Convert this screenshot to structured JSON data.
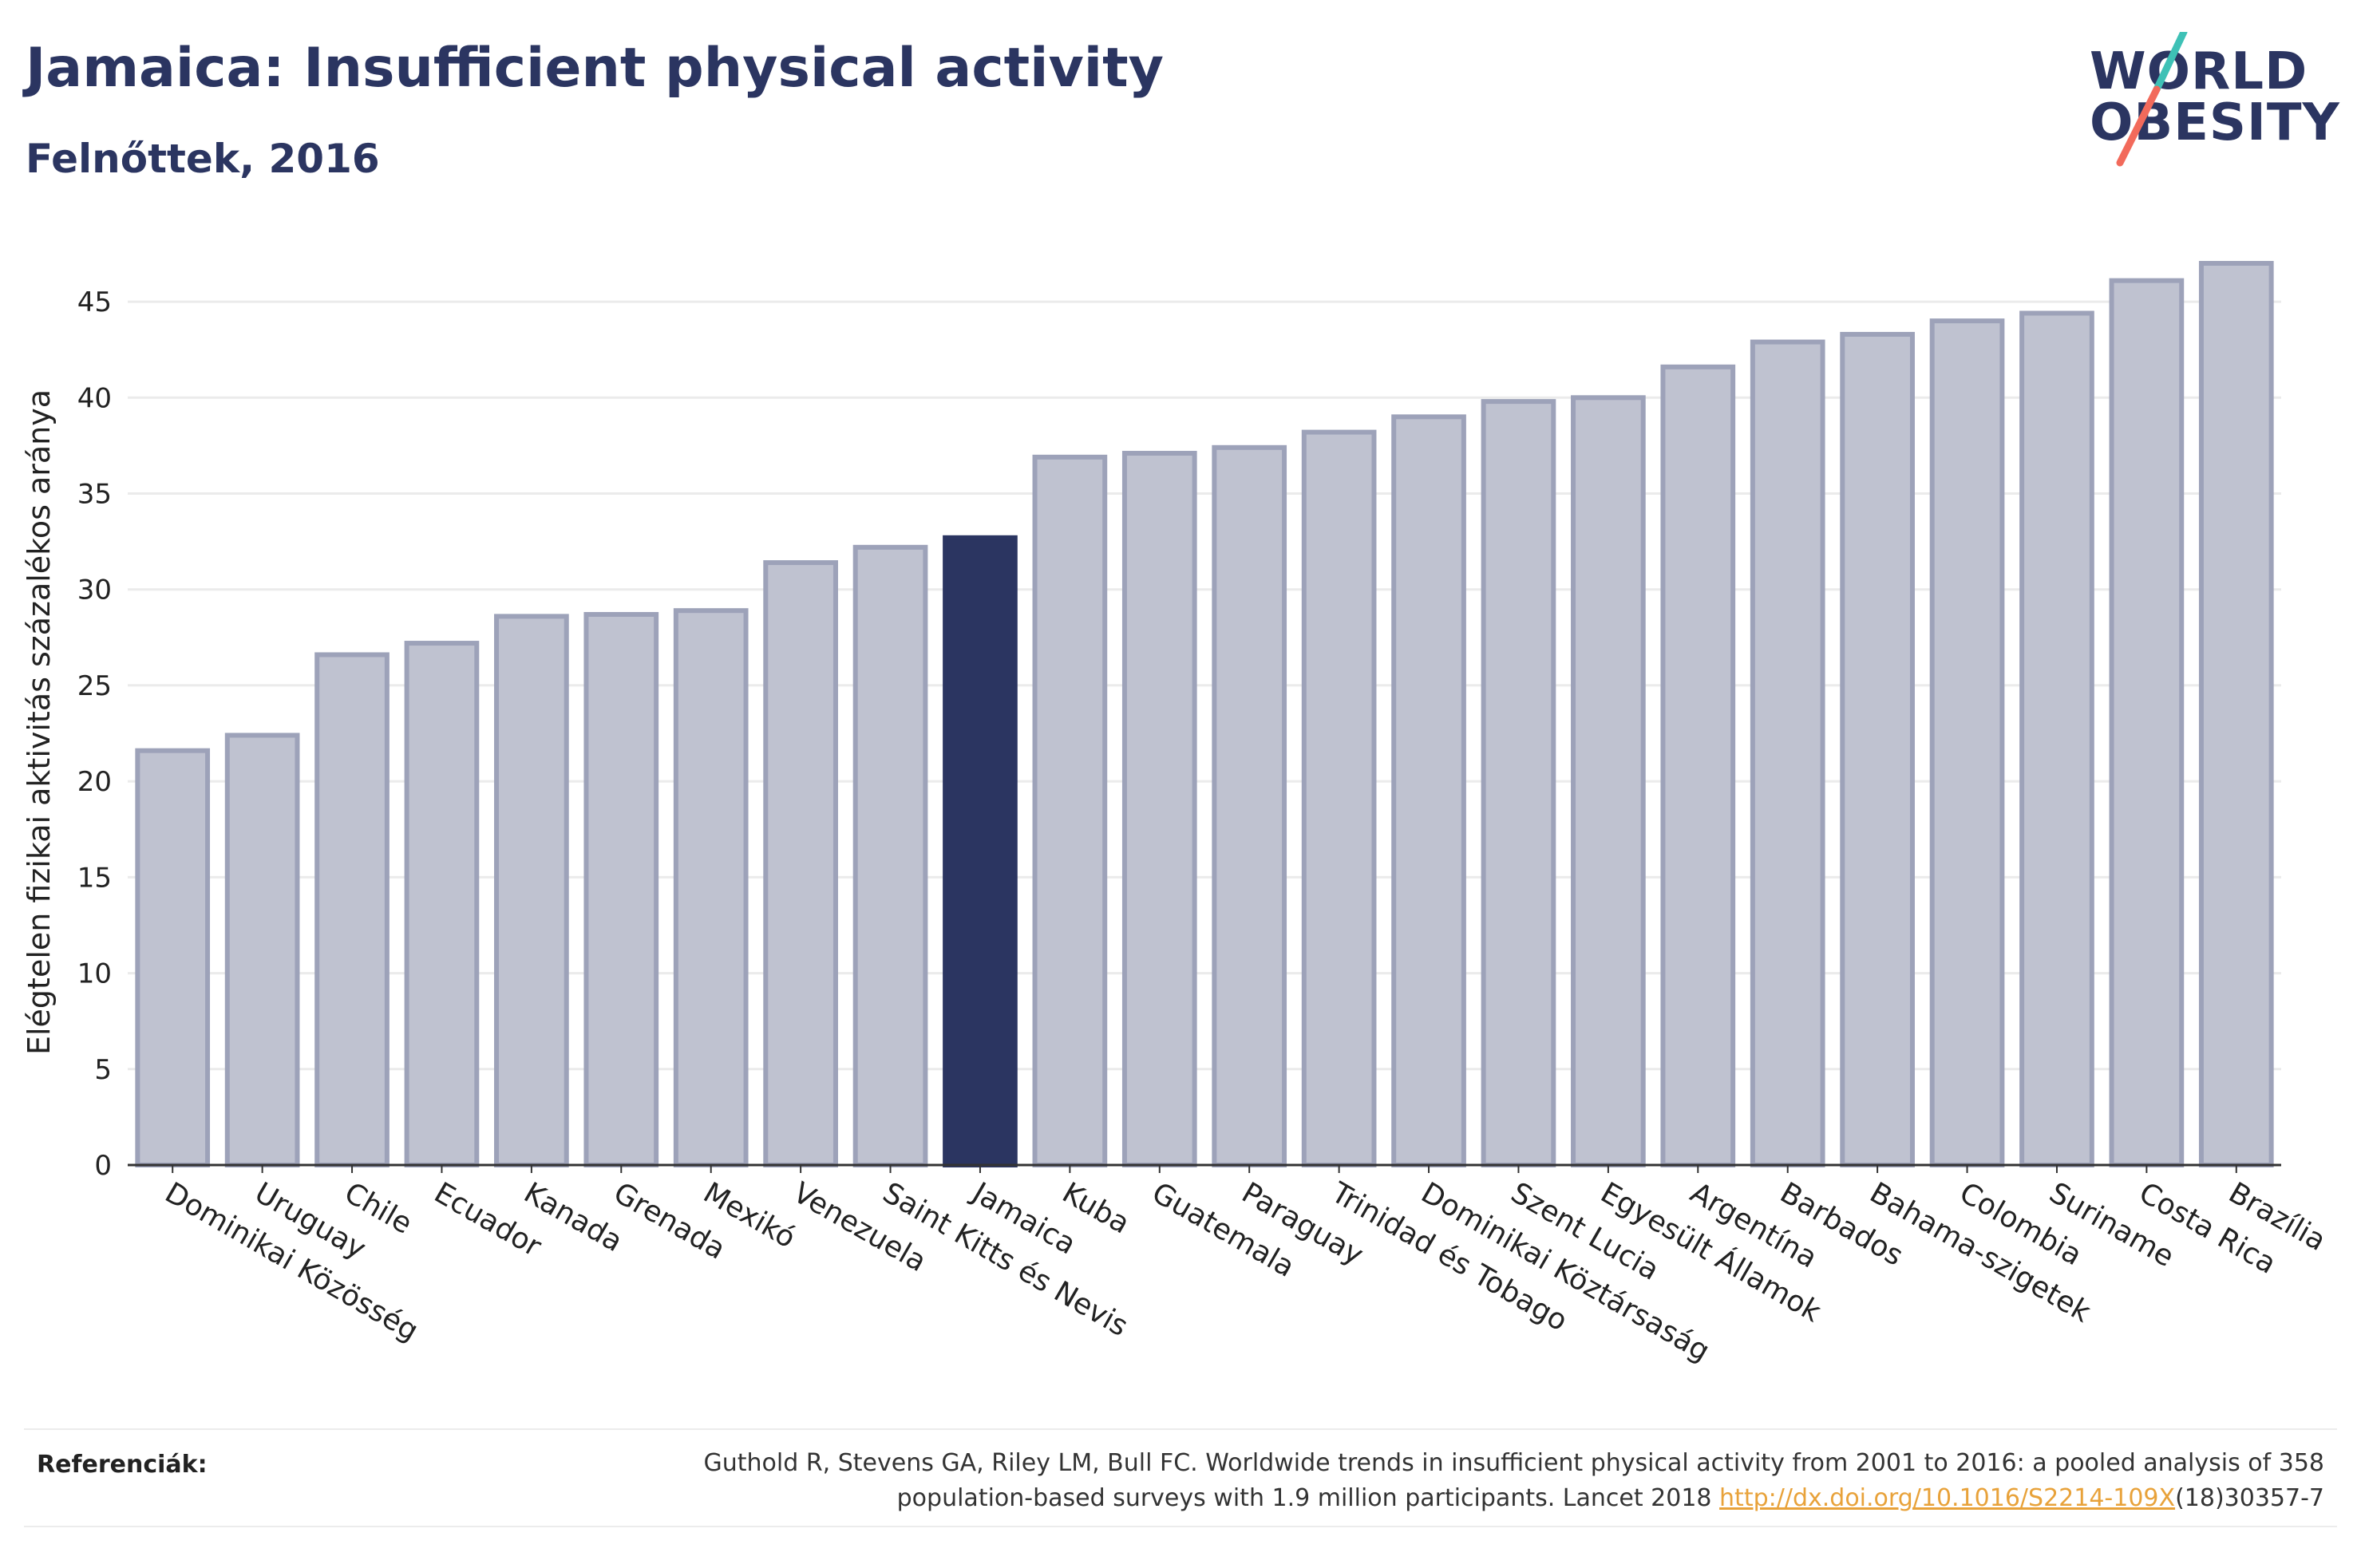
{
  "header": {
    "title": "Jamaica: Insufficient physical activity",
    "subtitle": "Felnőttek, 2016"
  },
  "logo": {
    "line1": "WORLD",
    "line2": "OBESITY",
    "colors": {
      "text": "#2b3561",
      "slash_top": "#3ec1b6",
      "slash_bottom": "#f26a5b"
    }
  },
  "colors": {
    "bar_fill": "#bfc2d0",
    "bar_stroke": "#9da2b9",
    "highlight_fill": "#2b3561",
    "grid": "#ebebeb",
    "axis": "#333333",
    "link": "#e8a23a"
  },
  "chart_data": {
    "type": "bar",
    "ylabel": "Elégtelen fizikai aktivitás százalékos aránya",
    "ylim": [
      0,
      47
    ],
    "yticks": [
      0,
      5,
      10,
      15,
      20,
      25,
      30,
      35,
      40,
      45
    ],
    "grid": true,
    "highlight": "Jamaica",
    "categories": [
      "Dominikai Közösség",
      "Uruguay",
      "Chile",
      "Ecuador",
      "Kanada",
      "Grenada",
      "Mexikó",
      "Venezuela",
      "Saint Kitts és Nevis",
      "Jamaica",
      "Kuba",
      "Guatemala",
      "Paraguay",
      "Trinidad és Tobago",
      "Dominikai Köztársaság",
      "Szent Lucia",
      "Egyesült Államok",
      "Argentína",
      "Barbados",
      "Bahama-szigetek",
      "Colombia",
      "Suriname",
      "Costa Rica",
      "Brazília"
    ],
    "values": [
      21.6,
      22.4,
      26.6,
      27.2,
      28.6,
      28.7,
      28.9,
      31.4,
      32.2,
      32.7,
      36.9,
      37.1,
      37.4,
      38.2,
      39.0,
      39.8,
      40.0,
      41.6,
      42.9,
      43.3,
      44.0,
      44.4,
      46.1,
      47.0
    ]
  },
  "references": {
    "label": "Referenciák:",
    "text_line1": "Guthold R, Stevens GA, Riley LM, Bull FC. Worldwide trends in insufficient physical activity from 2001 to 2016: a pooled analysis of 358",
    "text_line2_before": "population-based surveys with 1.9 million participants. Lancet 2018 ",
    "link": "http://dx.doi.org/10.1016/S2214-109X",
    "text_line2_after": "(18)30357-7"
  }
}
